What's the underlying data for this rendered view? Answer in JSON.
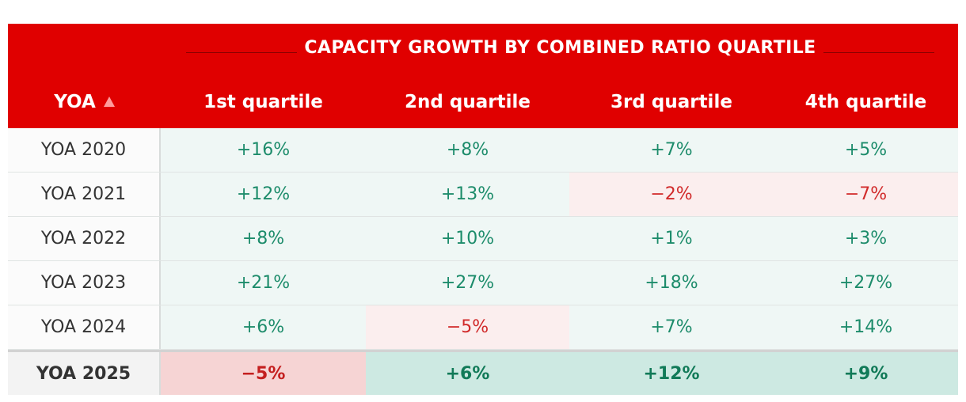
{
  "chart_data": {
    "type": "table",
    "title": "CAPACITY GROWTH BY COMBINED RATIO QUARTILE",
    "row_header_label": "YOA",
    "columns": [
      "1st quartile",
      "2nd quartile",
      "3rd quartile",
      "4th quartile"
    ],
    "rows": [
      {
        "label": "YOA 2020",
        "values": [
          "+16%",
          "+8%",
          "+7%",
          "+5%"
        ],
        "numeric": [
          16,
          8,
          7,
          5
        ]
      },
      {
        "label": "YOA 2021",
        "values": [
          "+12%",
          "+13%",
          "−2%",
          "−7%"
        ],
        "numeric": [
          12,
          13,
          -2,
          -7
        ]
      },
      {
        "label": "YOA 2022",
        "values": [
          "+8%",
          "+10%",
          "+1%",
          "+3%"
        ],
        "numeric": [
          8,
          10,
          1,
          3
        ]
      },
      {
        "label": "YOA 2023",
        "values": [
          "+21%",
          "+27%",
          "+18%",
          "+27%"
        ],
        "numeric": [
          21,
          27,
          18,
          27
        ]
      },
      {
        "label": "YOA 2024",
        "values": [
          "+6%",
          "−5%",
          "+7%",
          "+14%"
        ],
        "numeric": [
          6,
          -5,
          7,
          14
        ]
      },
      {
        "label": "YOA 2025",
        "values": [
          "−5%",
          "+6%",
          "+12%",
          "+9%"
        ],
        "numeric": [
          -5,
          6,
          12,
          9
        ]
      }
    ],
    "sort": {
      "column": "YOA",
      "direction": "ascending",
      "icon": "triangle-up-icon"
    }
  },
  "colors": {
    "header_bg": "#e00000",
    "positive_text": "#1d8c6b",
    "negative_text": "#d12a2a",
    "positive_bg": "#eff7f5",
    "negative_bg": "#fbeeee"
  }
}
